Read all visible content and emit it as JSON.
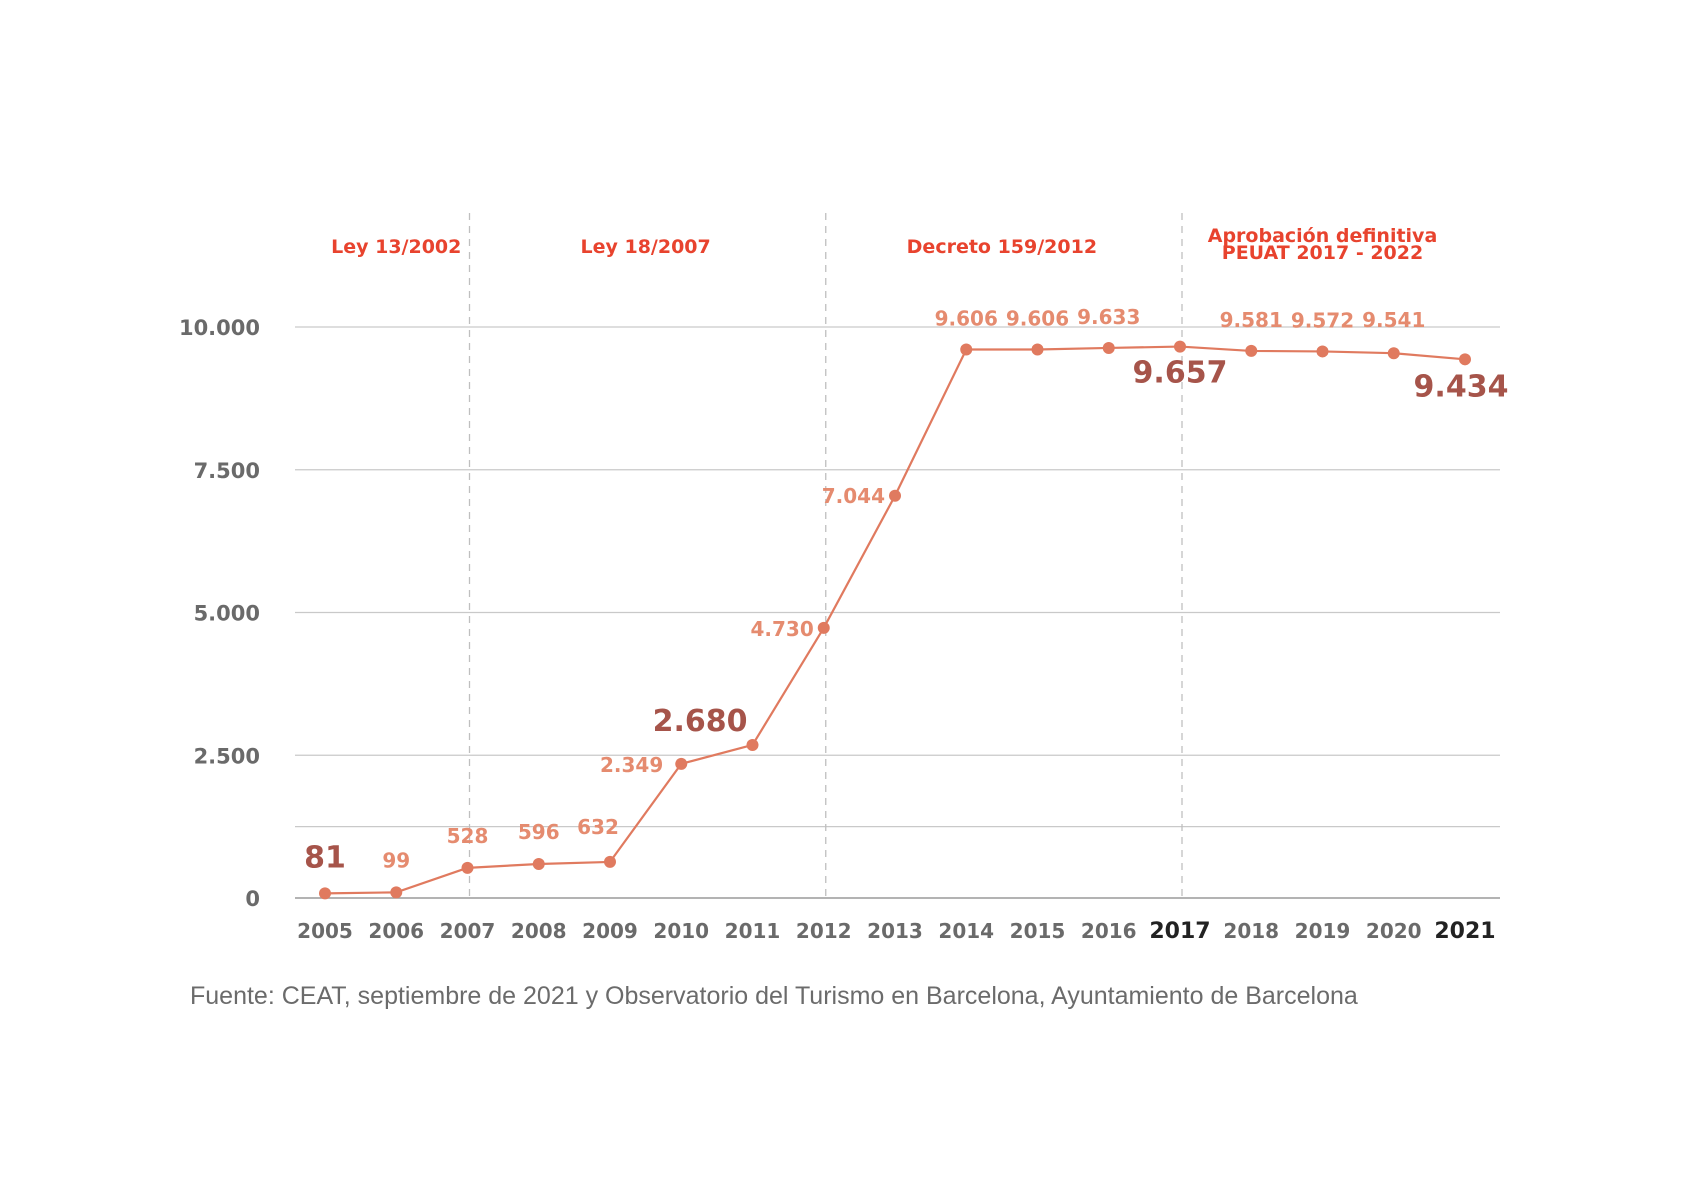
{
  "chart_data": {
    "type": "line",
    "title": "",
    "xlabel": "",
    "ylabel": "",
    "ylim": [
      0,
      10000
    ],
    "yticks": [
      0,
      2500,
      5000,
      7500,
      10000
    ],
    "ytick_labels": [
      "0",
      "2.500",
      "5.000",
      "7.500",
      "10.000"
    ],
    "categories": [
      "2005",
      "2006",
      "2007",
      "2008",
      "2009",
      "2010",
      "2011",
      "2012",
      "2013",
      "2014",
      "2015",
      "2016",
      "2017",
      "2018",
      "2019",
      "2020",
      "2021"
    ],
    "highlighted_categories": [
      "2017",
      "2021"
    ],
    "grid": true,
    "series": [
      {
        "name": "",
        "color": "#e07a5f",
        "values": [
          81,
          99,
          528,
          596,
          632,
          2349,
          2680,
          4730,
          7044,
          9606,
          9606,
          9633,
          9657,
          9581,
          9572,
          9541,
          9434
        ],
        "labels": [
          "81",
          "99",
          "528",
          "596",
          "632",
          "2.349",
          "2.680",
          "4.730",
          "7.044",
          "9.606",
          "9.606",
          "9.633",
          "9.657",
          "9.581",
          "9.572",
          "9.541",
          "9.434"
        ],
        "highlighted_labels": [
          "81",
          "2.680",
          "9.657",
          "9.434"
        ]
      }
    ],
    "periods": [
      {
        "label": [
          "Ley 13/2002"
        ],
        "start": "2005",
        "end": "2007"
      },
      {
        "label": [
          "Ley 18/2007"
        ],
        "start": "2007",
        "end": "2012"
      },
      {
        "label": [
          "Decreto 159/2012"
        ],
        "start": "2012",
        "end": "2017"
      },
      {
        "label": [
          "Aprobación definitiva",
          "PEUAT 2017 - 2022"
        ],
        "start": "2017",
        "end": "2021"
      }
    ],
    "colors": {
      "line": "#e07a5f",
      "point_label": "#e58b6f",
      "highlight_label": "#a6544a",
      "period_label": "#e8432e",
      "axis_text": "#6a6a6a",
      "axis_text_highlight": "#222222",
      "grid": "#c9c9c9",
      "divider": "#bfbfbf"
    }
  },
  "source": "Fuente: CEAT, septiembre de 2021 y Observatorio del Turismo en Barcelona, Ayuntamiento de Barcelona"
}
